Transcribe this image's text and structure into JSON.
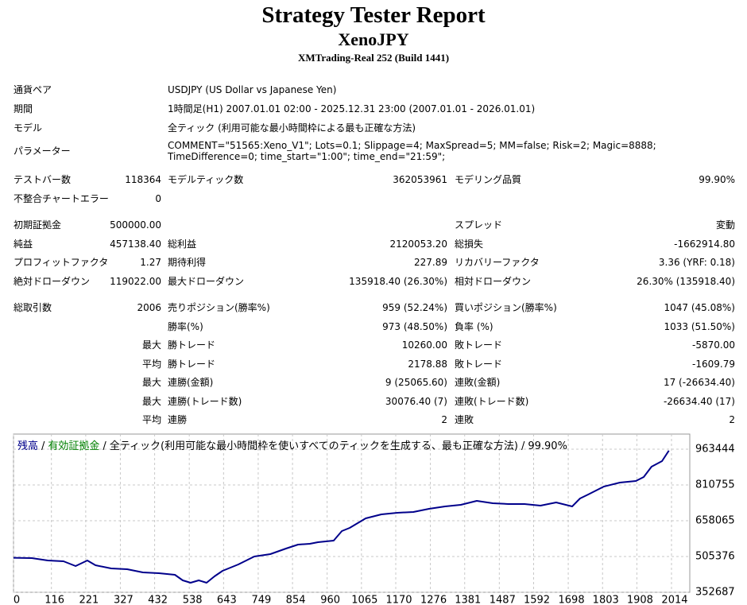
{
  "header": {
    "title": "Strategy Tester Report",
    "expert": "XenoJPY",
    "server": "XMTrading-Real 252 (Build 1441)"
  },
  "info": [
    {
      "label": "通貨ペア",
      "value": "USDJPY (US Dollar vs Japanese Yen)"
    },
    {
      "label": "期間",
      "value": "1時間足(H1) 2007.01.01 02:00 - 2025.12.31 23:00 (2007.01.01 - 2026.01.01)"
    },
    {
      "label": "モデル",
      "value": "全ティック (利用可能な最小時間枠による最も正確な方法)"
    },
    {
      "label": "パラメーター",
      "value": "COMMENT=\"51565:Xeno_V1\"; Lots=0.1; Slippage=4; MaxSpread=5; MM=false; Risk=2; Magic=8888; TimeDifference=0; time_start=\"1:00\"; time_end=\"21:59\";"
    }
  ],
  "stats": {
    "rows": [
      [
        "テストバー数",
        "118364",
        "モデルティック数",
        "362053961",
        "モデリング品質",
        "99.90%"
      ],
      [
        "不整合チャートエラー",
        "0",
        null,
        null,
        null,
        null
      ],
      [
        "初期証拠金",
        "500000.00",
        null,
        null,
        "スプレッド",
        "変動"
      ],
      [
        "純益",
        "457138.40",
        "総利益",
        "2120053.20",
        "総損失",
        "-1662914.80"
      ],
      [
        "プロフィットファクタ",
        "1.27",
        "期待利得",
        "227.89",
        "リカバリーファクタ",
        "3.36 (YRF: 0.18)"
      ],
      [
        "絶対ドローダウン",
        "119022.00",
        "最大ドローダウン",
        "135918.40 (26.30%)",
        "相対ドローダウン",
        "26.30% (135918.40)"
      ],
      [
        "総取引数",
        "2006",
        "売りポジション(勝率%)",
        "959 (52.24%)",
        "買いポジション(勝率%)",
        "1047 (45.08%)"
      ],
      [
        null,
        null,
        "勝率(%)",
        "973 (48.50%)",
        "負率 (%)",
        "1033 (51.50%)"
      ],
      [
        null,
        "最大",
        "勝トレード",
        "10260.00",
        "敗トレード",
        "-5870.00"
      ],
      [
        null,
        "平均",
        "勝トレード",
        "2178.88",
        "敗トレード",
        "-1609.79"
      ],
      [
        null,
        "最大",
        "連勝(金額)",
        "9 (25065.60)",
        "連敗(金額)",
        "17 (-26634.40)"
      ],
      [
        null,
        "最大",
        "連勝(トレード数)",
        "30076.40 (7)",
        "連敗(トレード数)",
        "-26634.40 (17)"
      ],
      [
        null,
        "平均",
        "連勝",
        "2",
        "連敗",
        "2"
      ]
    ]
  },
  "chart_data": {
    "type": "line",
    "separator": "/",
    "equity": {
      "name": "有効証拠金",
      "color": "#008000"
    },
    "subtitle": "全ティック(利用可能な最小時間枠を使いすべてのティックを生成する、最も正確な方法)",
    "quality": "99.90%",
    "series": [
      {
        "name": "残高",
        "color": "#00008b",
        "x": [
          0,
          56,
          105,
          153,
          190,
          226,
          251,
          299,
          348,
          396,
          445,
          494,
          518,
          542,
          567,
          591,
          615,
          640,
          664,
          688,
          737,
          786,
          834,
          871,
          907,
          932,
          980,
          1005,
          1029,
          1078,
          1126,
          1175,
          1224,
          1272,
          1321,
          1369,
          1418,
          1467,
          1515,
          1564,
          1613,
          1661,
          1710,
          1734,
          1759,
          1807,
          1856,
          1905,
          1929,
          1953,
          1985,
          2006
        ],
        "values": [
          500000,
          498586,
          488407,
          485014,
          464656,
          488407,
          468049,
          454477,
          451084,
          437512,
          434119,
          427333,
          403582,
          393403,
          403582,
          393403,
          420547,
          444298,
          457870,
          471442,
          505372,
          515551,
          539302,
          556267,
          559660,
          566446,
          573232,
          613948,
          627520,
          668236,
          685201,
          691987,
          695380,
          708952,
          719131,
          725917,
          742882,
          732703,
          729310,
          729310,
          722524,
          736096,
          719131,
          753061,
          770026,
          803956,
          820921,
          827707,
          844672,
          888781,
          912532,
          957138
        ]
      }
    ],
    "xlim": [
      0,
      2070
    ],
    "xticks": [
      0,
      116,
      221,
      327,
      432,
      538,
      643,
      749,
      854,
      960,
      1065,
      1170,
      1276,
      1381,
      1487,
      1592,
      1698,
      1803,
      1908,
      2014
    ],
    "ylim": [
      352687,
      1027900
    ],
    "yticks": [
      352687,
      505376,
      658065,
      810755,
      963444
    ],
    "grid": true
  }
}
